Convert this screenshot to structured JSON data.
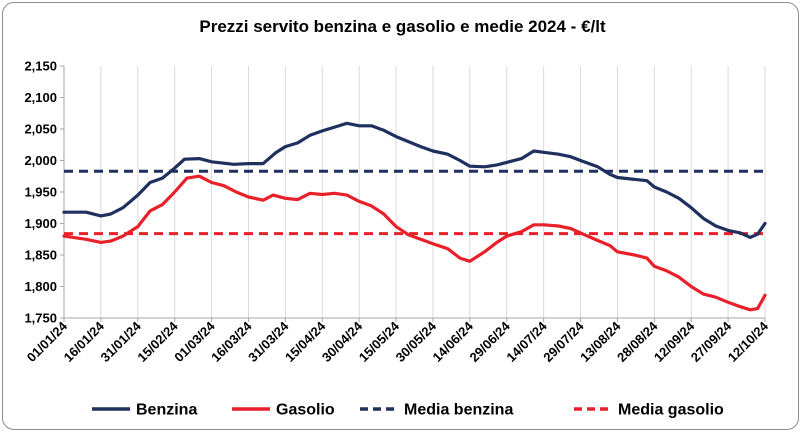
{
  "chart_data": {
    "type": "line",
    "title": "Prezzi servito benzina e gasolio e medie 2024 - €/lt",
    "xlabel": "",
    "ylabel": "",
    "ylim": [
      1.75,
      2.15
    ],
    "grid": "vertical",
    "legend_position": "bottom",
    "y_ticks": [
      "2,150",
      "2,100",
      "2,050",
      "2,000",
      "1,950",
      "1,900",
      "1,850",
      "1,800",
      "1,750"
    ],
    "x_ticks": [
      "01/01/24",
      "16/01/24",
      "31/01/24",
      "15/02/24",
      "01/03/24",
      "16/03/24",
      "31/03/24",
      "15/04/24",
      "30/04/24",
      "15/05/24",
      "30/05/24",
      "14/06/24",
      "29/06/24",
      "14/07/24",
      "29/07/24",
      "13/08/24",
      "28/08/24",
      "12/09/24",
      "27/09/24",
      "12/10/24"
    ],
    "series": [
      {
        "name": "Benzina",
        "color": "#1f2f5e",
        "style": "solid",
        "points": [
          [
            "01/01/24",
            1.918
          ],
          [
            "10/01/24",
            1.918
          ],
          [
            "16/01/24",
            1.912
          ],
          [
            "20/01/24",
            1.915
          ],
          [
            "25/01/24",
            1.925
          ],
          [
            "31/01/24",
            1.945
          ],
          [
            "05/02/24",
            1.965
          ],
          [
            "10/02/24",
            1.972
          ],
          [
            "15/02/24",
            1.988
          ],
          [
            "19/02/24",
            2.002
          ],
          [
            "25/02/24",
            2.003
          ],
          [
            "01/03/24",
            1.998
          ],
          [
            "10/03/24",
            1.994
          ],
          [
            "16/03/24",
            1.995
          ],
          [
            "22/03/24",
            1.995
          ],
          [
            "27/03/24",
            2.012
          ],
          [
            "31/03/24",
            2.022
          ],
          [
            "05/04/24",
            2.028
          ],
          [
            "10/04/24",
            2.04
          ],
          [
            "15/04/24",
            2.047
          ],
          [
            "20/04/24",
            2.053
          ],
          [
            "25/04/24",
            2.059
          ],
          [
            "30/04/24",
            2.055
          ],
          [
            "05/05/24",
            2.055
          ],
          [
            "10/05/24",
            2.048
          ],
          [
            "15/05/24",
            2.038
          ],
          [
            "20/05/24",
            2.03
          ],
          [
            "25/05/24",
            2.022
          ],
          [
            "30/05/24",
            2.015
          ],
          [
            "05/06/24",
            2.01
          ],
          [
            "10/06/24",
            2.0
          ],
          [
            "14/06/24",
            1.991
          ],
          [
            "20/06/24",
            1.99
          ],
          [
            "25/06/24",
            1.993
          ],
          [
            "29/06/24",
            1.997
          ],
          [
            "05/07/24",
            2.003
          ],
          [
            "10/07/24",
            2.015
          ],
          [
            "14/07/24",
            2.013
          ],
          [
            "20/07/24",
            2.01
          ],
          [
            "25/07/24",
            2.006
          ],
          [
            "29/07/24",
            2.0
          ],
          [
            "05/08/24",
            1.99
          ],
          [
            "10/08/24",
            1.978
          ],
          [
            "13/08/24",
            1.973
          ],
          [
            "20/08/24",
            1.97
          ],
          [
            "25/08/24",
            1.968
          ],
          [
            "28/08/24",
            1.958
          ],
          [
            "02/09/24",
            1.95
          ],
          [
            "07/09/24",
            1.94
          ],
          [
            "12/09/24",
            1.925
          ],
          [
            "17/09/24",
            1.908
          ],
          [
            "22/09/24",
            1.896
          ],
          [
            "27/09/24",
            1.889
          ],
          [
            "02/10/24",
            1.885
          ],
          [
            "06/10/24",
            1.878
          ],
          [
            "09/10/24",
            1.883
          ],
          [
            "12/10/24",
            1.9
          ]
        ]
      },
      {
        "name": "Gasolio",
        "color": "#e8202a",
        "style": "solid",
        "points": [
          [
            "01/01/24",
            1.88
          ],
          [
            "10/01/24",
            1.875
          ],
          [
            "16/01/24",
            1.87
          ],
          [
            "20/01/24",
            1.872
          ],
          [
            "25/01/24",
            1.88
          ],
          [
            "31/01/24",
            1.895
          ],
          [
            "05/02/24",
            1.92
          ],
          [
            "10/02/24",
            1.93
          ],
          [
            "15/02/24",
            1.95
          ],
          [
            "20/02/24",
            1.972
          ],
          [
            "25/02/24",
            1.975
          ],
          [
            "01/03/24",
            1.965
          ],
          [
            "06/03/24",
            1.96
          ],
          [
            "11/03/24",
            1.95
          ],
          [
            "16/03/24",
            1.942
          ],
          [
            "22/03/24",
            1.937
          ],
          [
            "26/03/24",
            1.945
          ],
          [
            "31/03/24",
            1.94
          ],
          [
            "05/04/24",
            1.938
          ],
          [
            "10/04/24",
            1.948
          ],
          [
            "15/04/24",
            1.946
          ],
          [
            "20/04/24",
            1.948
          ],
          [
            "25/04/24",
            1.945
          ],
          [
            "30/04/24",
            1.935
          ],
          [
            "05/05/24",
            1.928
          ],
          [
            "10/05/24",
            1.915
          ],
          [
            "15/05/24",
            1.895
          ],
          [
            "20/05/24",
            1.882
          ],
          [
            "25/05/24",
            1.875
          ],
          [
            "30/05/24",
            1.868
          ],
          [
            "05/06/24",
            1.86
          ],
          [
            "10/06/24",
            1.845
          ],
          [
            "14/06/24",
            1.84
          ],
          [
            "20/06/24",
            1.855
          ],
          [
            "25/06/24",
            1.87
          ],
          [
            "29/06/24",
            1.88
          ],
          [
            "05/07/24",
            1.887
          ],
          [
            "10/07/24",
            1.898
          ],
          [
            "14/07/24",
            1.898
          ],
          [
            "20/07/24",
            1.896
          ],
          [
            "25/07/24",
            1.892
          ],
          [
            "29/07/24",
            1.885
          ],
          [
            "05/08/24",
            1.873
          ],
          [
            "10/08/24",
            1.865
          ],
          [
            "13/08/24",
            1.855
          ],
          [
            "20/08/24",
            1.85
          ],
          [
            "25/08/24",
            1.845
          ],
          [
            "28/08/24",
            1.832
          ],
          [
            "02/09/24",
            1.825
          ],
          [
            "07/09/24",
            1.815
          ],
          [
            "12/09/24",
            1.8
          ],
          [
            "17/09/24",
            1.788
          ],
          [
            "22/09/24",
            1.783
          ],
          [
            "27/09/24",
            1.775
          ],
          [
            "02/10/24",
            1.768
          ],
          [
            "06/10/24",
            1.763
          ],
          [
            "09/10/24",
            1.765
          ],
          [
            "12/10/24",
            1.786
          ]
        ]
      },
      {
        "name": "Media benzina",
        "color": "#1f2f5e",
        "style": "dashed",
        "value": 1.983
      },
      {
        "name": "Media gasolio",
        "color": "#e8202a",
        "style": "dashed",
        "value": 1.884
      }
    ]
  }
}
